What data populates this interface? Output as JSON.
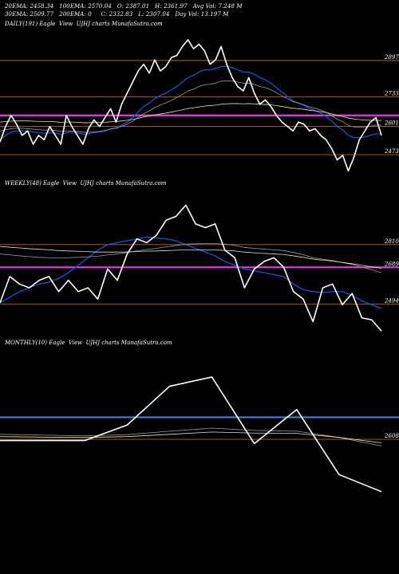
{
  "header": {
    "line1": [
      {
        "id": "ema20",
        "text": "20EMA: 2458.34"
      },
      {
        "id": "ema100",
        "text": "100EMA: 2570.04"
      },
      {
        "id": "open",
        "text": "O: 2387.01"
      },
      {
        "id": "high",
        "text": "H: 2361.97"
      },
      {
        "id": "avgvol",
        "text": "Avg Vol: 7.248 M"
      }
    ],
    "line2": [
      {
        "id": "ema30",
        "text": "30EMA: 2509.77"
      },
      {
        "id": "ema200",
        "text": "200EMA: 0"
      },
      {
        "id": "close",
        "text": "C: 2332.83"
      },
      {
        "id": "low",
        "text": "L: 2307.04"
      },
      {
        "id": "dayvol",
        "text": "Day Vol: 13.197 M"
      }
    ]
  },
  "colors": {
    "background": "#000000",
    "price": "#ffffff",
    "ema_blue": "#1f4fd8",
    "magenta": "#e040e0",
    "orange": "#b5651d",
    "blue_hline": "#4a7bd8",
    "ma_gray": "#9a9a9a",
    "ma_cream": "#e8e0c0"
  },
  "chart_data": [
    {
      "id": "daily",
      "label": "DAILY(191) Eagle  View  UJHJ charts MunafaSutra.com",
      "type": "line",
      "ylim": [
        2380,
        3040
      ],
      "yticks": [
        2897,
        2733,
        2601,
        2473
      ],
      "hlines": [
        {
          "value": 2897,
          "color": "orange"
        },
        {
          "value": 2733,
          "color": "orange"
        },
        {
          "value": 2650,
          "color": "magenta"
        },
        {
          "value": 2601,
          "color": "orange"
        },
        {
          "value": 2473,
          "color": "orange"
        }
      ],
      "x_count": 70,
      "series": [
        {
          "role": "price",
          "values": [
            2530,
            2600,
            2650,
            2610,
            2560,
            2580,
            2520,
            2560,
            2540,
            2600,
            2560,
            2520,
            2650,
            2600,
            2560,
            2520,
            2590,
            2630,
            2600,
            2640,
            2680,
            2620,
            2700,
            2750,
            2800,
            2850,
            2880,
            2840,
            2900,
            2850,
            2870,
            2910,
            2920,
            2960,
            2990,
            2950,
            2970,
            2940,
            2880,
            2900,
            2960,
            2880,
            2820,
            2780,
            2760,
            2820,
            2750,
            2700,
            2720,
            2690,
            2650,
            2620,
            2600,
            2580,
            2620,
            2610,
            2580,
            2590,
            2560,
            2540,
            2500,
            2450,
            2470,
            2400,
            2460,
            2540,
            2580,
            2620,
            2640,
            2560
          ]
        },
        {
          "role": "ema20",
          "color": "ema_blue",
          "values": [
            2540,
            2560,
            2575,
            2580,
            2580,
            2580,
            2575,
            2572,
            2570,
            2572,
            2570,
            2565,
            2572,
            2575,
            2572,
            2565,
            2567,
            2572,
            2575,
            2580,
            2590,
            2595,
            2605,
            2620,
            2640,
            2665,
            2690,
            2705,
            2725,
            2740,
            2750,
            2765,
            2780,
            2800,
            2820,
            2830,
            2845,
            2855,
            2855,
            2860,
            2870,
            2870,
            2865,
            2855,
            2845,
            2845,
            2835,
            2820,
            2810,
            2795,
            2775,
            2755,
            2735,
            2715,
            2705,
            2695,
            2680,
            2672,
            2660,
            2645,
            2625,
            2600,
            2585,
            2560,
            2550,
            2550,
            2553,
            2560,
            2567,
            2566
          ]
        },
        {
          "role": "ema30",
          "color": "ma_gray",
          "values": [
            2580,
            2585,
            2590,
            2592,
            2592,
            2590,
            2588,
            2586,
            2584,
            2584,
            2582,
            2578,
            2580,
            2580,
            2578,
            2574,
            2574,
            2576,
            2578,
            2582,
            2588,
            2592,
            2600,
            2610,
            2624,
            2640,
            2658,
            2670,
            2685,
            2697,
            2706,
            2718,
            2730,
            2745,
            2760,
            2768,
            2780,
            2788,
            2790,
            2795,
            2804,
            2806,
            2805,
            2800,
            2795,
            2795,
            2790,
            2780,
            2775,
            2765,
            2752,
            2738,
            2725,
            2712,
            2705,
            2698,
            2688,
            2682,
            2674,
            2664,
            2650,
            2632,
            2622,
            2605,
            2598,
            2597,
            2598,
            2602,
            2606,
            2606
          ]
        },
        {
          "role": "ema100",
          "color": "ma_cream",
          "values": [
            2620,
            2622,
            2624,
            2625,
            2625,
            2625,
            2624,
            2623,
            2622,
            2622,
            2621,
            2619,
            2620,
            2620,
            2619,
            2617,
            2617,
            2618,
            2618,
            2619,
            2621,
            2622,
            2625,
            2628,
            2632,
            2637,
            2643,
            2647,
            2652,
            2656,
            2660,
            2665,
            2670,
            2675,
            2681,
            2684,
            2688,
            2692,
            2694,
            2696,
            2700,
            2702,
            2703,
            2703,
            2702,
            2703,
            2702,
            2700,
            2699,
            2697,
            2694,
            2690,
            2686,
            2682,
            2680,
            2677,
            2673,
            2670,
            2667,
            2663,
            2657,
            2650,
            2645,
            2638,
            2634,
            2631,
            2629,
            2628,
            2628,
            2627
          ]
        }
      ]
    },
    {
      "id": "weekly",
      "label": "WEEKLY(48) Eagle  View  UJHJ charts MunafaSutra.com",
      "type": "line",
      "ylim": [
        2330,
        3110
      ],
      "yticks": [
        2810,
        2689,
        2494
      ],
      "hlines": [
        {
          "value": 2810,
          "color": "orange"
        },
        {
          "value": 2689,
          "color": "magenta"
        },
        {
          "value": 2494,
          "color": "orange"
        }
      ],
      "x_count": 40,
      "series": [
        {
          "role": "price",
          "values": [
            2500,
            2640,
            2600,
            2580,
            2620,
            2640,
            2560,
            2620,
            2560,
            2580,
            2520,
            2680,
            2620,
            2760,
            2840,
            2820,
            2860,
            2940,
            2960,
            3020,
            2920,
            2900,
            2920,
            2780,
            2740,
            2580,
            2680,
            2720,
            2740,
            2690,
            2560,
            2520,
            2400,
            2580,
            2600,
            2490,
            2550,
            2420,
            2410,
            2350
          ]
        },
        {
          "role": "ema20",
          "color": "ema_blue",
          "values": [
            2500,
            2530,
            2560,
            2580,
            2600,
            2610,
            2630,
            2660,
            2700,
            2740,
            2780,
            2810,
            2820,
            2830,
            2840,
            2850,
            2845,
            2840,
            2830,
            2810,
            2790,
            2770,
            2750,
            2720,
            2700,
            2680,
            2670,
            2660,
            2650,
            2640,
            2600,
            2570,
            2560,
            2555,
            2560,
            2560,
            2540,
            2510,
            2490,
            2470
          ]
        },
        {
          "role": "ema30",
          "color": "ma_gray",
          "values": [
            2760,
            2755,
            2750,
            2746,
            2742,
            2740,
            2738,
            2740,
            2742,
            2745,
            2748,
            2755,
            2760,
            2768,
            2776,
            2784,
            2790,
            2798,
            2805,
            2812,
            2814,
            2815,
            2815,
            2812,
            2806,
            2795,
            2790,
            2786,
            2782,
            2778,
            2768,
            2756,
            2740,
            2732,
            2725,
            2714,
            2704,
            2690,
            2676,
            2660
          ]
        },
        {
          "role": "ema100",
          "color": "ma_cream",
          "values": [
            2800,
            2796,
            2792,
            2788,
            2785,
            2782,
            2778,
            2776,
            2774,
            2772,
            2770,
            2770,
            2770,
            2771,
            2773,
            2775,
            2776,
            2778,
            2780,
            2782,
            2782,
            2782,
            2781,
            2779,
            2776,
            2770,
            2766,
            2763,
            2760,
            2757,
            2750,
            2742,
            2733,
            2727,
            2722,
            2715,
            2708,
            2700,
            2692,
            2684
          ]
        }
      ]
    },
    {
      "id": "monthly",
      "label": "MONTHLY(10) Eagle  View  UJHJ charts MunafaSutra.com",
      "type": "line",
      "ylim": [
        2150,
        3200
      ],
      "yticks": [
        2608
      ],
      "hlines": [
        {
          "value": 2750,
          "color": "blue_hline"
        },
        {
          "value": 2608,
          "color": "orange"
        }
      ],
      "x_count": 10,
      "series": [
        {
          "role": "price",
          "values": [
            2600,
            2600,
            2600,
            2700,
            2950,
            3010,
            2580,
            2800,
            2380,
            2270
          ]
        },
        {
          "role": "ema30",
          "color": "ma_gray",
          "values": [
            2640,
            2635,
            2630,
            2638,
            2660,
            2680,
            2665,
            2660,
            2620,
            2565
          ]
        },
        {
          "role": "ema100",
          "color": "ma_cream",
          "values": [
            2625,
            2622,
            2620,
            2625,
            2640,
            2655,
            2648,
            2646,
            2620,
            2585
          ]
        }
      ]
    }
  ]
}
